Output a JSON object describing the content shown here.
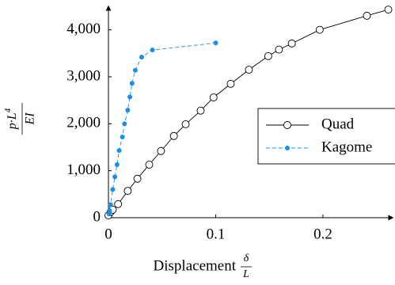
{
  "chart_data": {
    "type": "line",
    "x_label": {
      "text": "Displacement",
      "numerator": "δ",
      "denominator": "L"
    },
    "y_label": {
      "numerator": "p·L",
      "exponent": "4",
      "denominator": "EI"
    },
    "xlim": [
      0,
      0.265
    ],
    "ylim": [
      0,
      4500
    ],
    "xticks": [
      0,
      0.1,
      0.2
    ],
    "yticks": [
      0,
      {
        "value": 1000,
        "label": "1,000"
      },
      {
        "value": 2000,
        "label": "2,000"
      },
      {
        "value": 3000,
        "label": "3,000"
      },
      {
        "value": 4000,
        "label": "4,000"
      }
    ],
    "legend": "right",
    "series": [
      {
        "name": "Quad",
        "color": "#000000",
        "marker": "open-circle",
        "dashed": false,
        "x": [
          0,
          0.002,
          0.004,
          0.009,
          0.018,
          0.027,
          0.038,
          0.049,
          0.061,
          0.072,
          0.086,
          0.098,
          0.114,
          0.131,
          0.149,
          0.159,
          0.171,
          0.197,
          0.241,
          0.261
        ],
        "values": [
          50,
          120,
          170,
          290,
          570,
          830,
          1130,
          1420,
          1740,
          1990,
          2280,
          2560,
          2850,
          3150,
          3440,
          3580,
          3710,
          4000,
          4300,
          4430
        ]
      },
      {
        "name": "Kagome",
        "color": "#1a8fe6",
        "marker": "filled-circle",
        "dashed": true,
        "x": [
          0.0005,
          0.001,
          0.002,
          0.004,
          0.006,
          0.008,
          0.01,
          0.013,
          0.015,
          0.018,
          0.02,
          0.022,
          0.025,
          0.031,
          0.041,
          0.1
        ],
        "values": [
          80,
          150,
          280,
          600,
          870,
          1130,
          1430,
          1720,
          2000,
          2290,
          2570,
          2860,
          3140,
          3420,
          3570,
          3720
        ]
      }
    ]
  }
}
